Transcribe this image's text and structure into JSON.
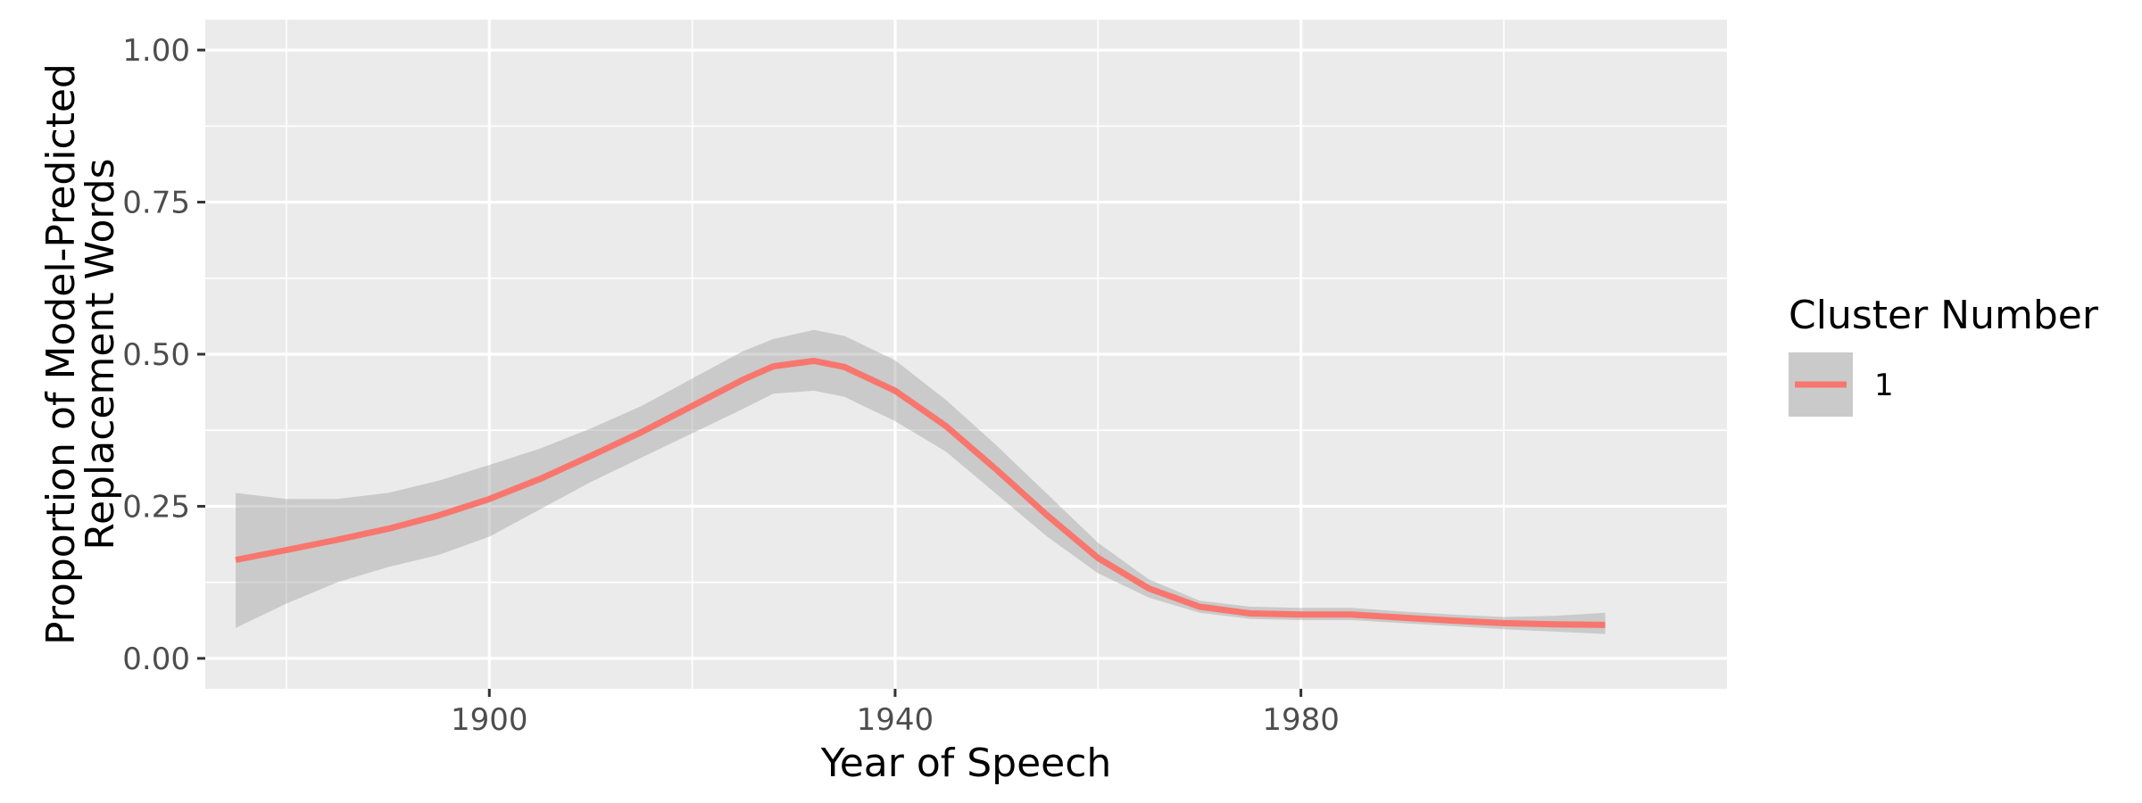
{
  "chart_data": {
    "type": "line",
    "xlabel": "Year of Speech",
    "ylabel": "Proportion of Model-Predicted Replacement Words",
    "ylabel_lines": [
      "Proportion of Model-Predicted",
      "Replacement Words"
    ],
    "xlim": [
      1872,
      2022
    ],
    "ylim": [
      -0.05,
      1.05
    ],
    "x_ticks": [
      1900,
      1940,
      1980
    ],
    "x_tick_labels": [
      "1900",
      "1940",
      "1980"
    ],
    "x_minor_ticks": [
      1880,
      1920,
      1960,
      2000
    ],
    "y_ticks": [
      0.0,
      0.25,
      0.5,
      0.75,
      1.0
    ],
    "y_tick_labels": [
      "0.00",
      "0.25",
      "0.50",
      "0.75",
      "1.00"
    ],
    "y_minor_ticks": [
      0.125,
      0.375,
      0.625,
      0.875
    ],
    "grid": true,
    "panel_color": "#ebebeb",
    "grid_color": "#ffffff",
    "legend": {
      "title": "Cluster Number",
      "position": "right",
      "entries": [
        "1"
      ]
    },
    "series": [
      {
        "name": "1",
        "color": "#f8766d",
        "band_color": "#999999",
        "x": [
          1875,
          1880,
          1885,
          1890,
          1895,
          1900,
          1905,
          1910,
          1915,
          1920,
          1925,
          1928,
          1932,
          1935,
          1940,
          1945,
          1950,
          1955,
          1960,
          1965,
          1970,
          1975,
          1980,
          1985,
          1990,
          1995,
          2000,
          2005,
          2010
        ],
        "y": [
          0.162,
          0.178,
          0.195,
          0.213,
          0.235,
          0.262,
          0.295,
          0.333,
          0.372,
          0.415,
          0.458,
          0.48,
          0.489,
          0.479,
          0.44,
          0.382,
          0.31,
          0.235,
          0.165,
          0.115,
          0.085,
          0.074,
          0.072,
          0.072,
          0.067,
          0.062,
          0.058,
          0.056,
          0.055
        ],
        "lower": [
          0.05,
          0.09,
          0.125,
          0.15,
          0.17,
          0.2,
          0.245,
          0.29,
          0.33,
          0.37,
          0.41,
          0.435,
          0.44,
          0.43,
          0.39,
          0.34,
          0.27,
          0.2,
          0.14,
          0.1,
          0.075,
          0.065,
          0.063,
          0.063,
          0.058,
          0.053,
          0.048,
          0.044,
          0.04
        ],
        "upper": [
          0.272,
          0.262,
          0.262,
          0.272,
          0.292,
          0.318,
          0.345,
          0.378,
          0.415,
          0.46,
          0.505,
          0.525,
          0.54,
          0.53,
          0.49,
          0.425,
          0.35,
          0.27,
          0.19,
          0.13,
          0.095,
          0.085,
          0.083,
          0.083,
          0.077,
          0.072,
          0.068,
          0.07,
          0.075
        ]
      }
    ]
  }
}
